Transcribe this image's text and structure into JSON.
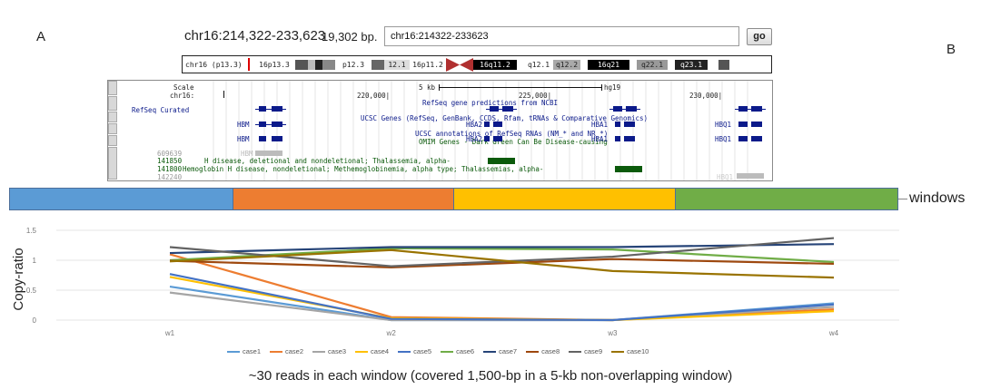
{
  "labels": {
    "panel_a": "A",
    "panel_b": "B"
  },
  "browser": {
    "position": "chr16:214,322-233,623",
    "size": "19,302 bp.",
    "search_value": "chr16:214322-233623",
    "go_label": "go"
  },
  "ideogram": {
    "chrom_label": "chr16 (p13.3)",
    "bands": [
      "16p13.3",
      "p12.3",
      "12.1",
      "16p11.2",
      "16q11.2",
      "q12.1",
      "q12.2",
      "16q21",
      "q22.1",
      "q23.1"
    ]
  },
  "tracks": {
    "scale_label": "Scale",
    "chrom_label": "chr16:",
    "scale_bar": "5 kb",
    "assembly": "hg19",
    "coords": [
      "220,000|",
      "225,000|",
      "230,000|"
    ],
    "refseq_curated": "RefSeq Curated",
    "refseq_title": "RefSeq gene predictions from NCBI",
    "ucsc_title": "UCSC Genes (RefSeq, GenBank, CCDS, Rfam, tRNAs & Comparative Genomics)",
    "ucsc_ann_title": "UCSC annotations of RefSeq RNAs (NM_* and NR_*)",
    "omim_title": "OMIM Genes - Dark Green Can Be Disease-causing",
    "genes": [
      "HBM",
      "HBA2",
      "HBA1",
      "HBQ1",
      "HBM",
      "HBA2",
      "HBA1",
      "HBQ1",
      "HBM",
      "HBQ1"
    ],
    "omim_ids": [
      "609639",
      "141850",
      "141800",
      "142240"
    ],
    "omim_desc1": "H disease, deletional and nondeletional; Thalassemia, alpha-",
    "omim_desc2": "Hemoglobin H disease, nondeletional; Methemoglobinemia, alpha type; Thalassemias, alpha-"
  },
  "windows_label": "windows",
  "window_colors": [
    "#5b9bd5",
    "#ed7d31",
    "#ffc000",
    "#70ad47"
  ],
  "chart_data": {
    "type": "line",
    "ylabel": "Copy-ratio",
    "categories": [
      "w1",
      "w2",
      "w3",
      "w4"
    ],
    "yticks": [
      "0",
      "0.5",
      "1",
      "1.5"
    ],
    "ylim": [
      0,
      1.5
    ],
    "series": [
      {
        "name": "case1",
        "color": "#5b9bd5",
        "values": [
          0.56,
          0.0,
          0.0,
          0.28
        ]
      },
      {
        "name": "case2",
        "color": "#ed7d31",
        "values": [
          1.1,
          0.05,
          0.0,
          0.18
        ]
      },
      {
        "name": "case3",
        "color": "#a5a5a5",
        "values": [
          0.46,
          0.0,
          0.0,
          0.22
        ]
      },
      {
        "name": "case4",
        "color": "#ffc000",
        "values": [
          0.72,
          0.03,
          0.0,
          0.15
        ]
      },
      {
        "name": "case5",
        "color": "#4472c4",
        "values": [
          0.77,
          0.02,
          0.0,
          0.26
        ]
      },
      {
        "name": "case6",
        "color": "#70ad47",
        "values": [
          1.0,
          1.2,
          1.18,
          0.97
        ]
      },
      {
        "name": "case7",
        "color": "#264478",
        "values": [
          1.12,
          1.22,
          1.22,
          1.27
        ]
      },
      {
        "name": "case8",
        "color": "#9e480e",
        "values": [
          0.99,
          0.88,
          1.02,
          0.94
        ]
      },
      {
        "name": "case9",
        "color": "#636363",
        "values": [
          1.22,
          0.9,
          1.06,
          1.37
        ]
      },
      {
        "name": "case10",
        "color": "#997300",
        "values": [
          0.98,
          1.17,
          0.82,
          0.71
        ]
      }
    ]
  },
  "caption": "~30 reads in each window (covered 1,500-bp in a 5-kb non-overlapping window)"
}
